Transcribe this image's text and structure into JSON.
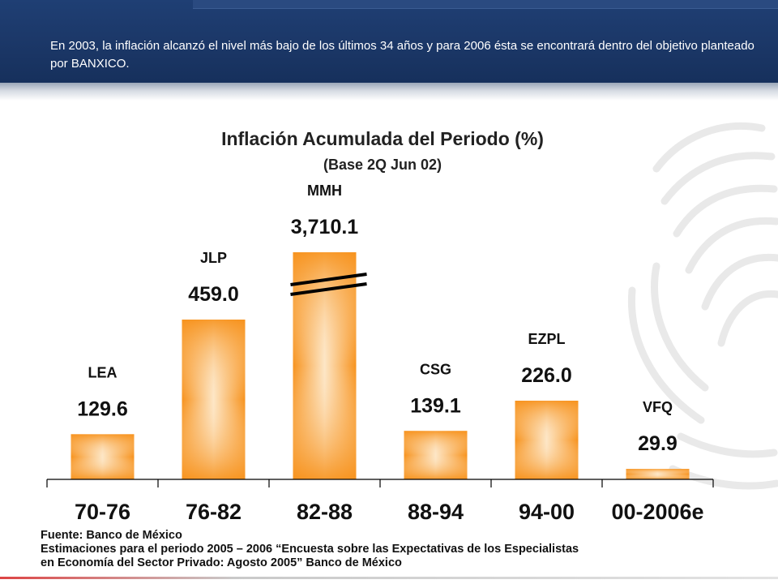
{
  "header": {
    "note": "En 2003, la inflación alcanzó el nivel más bajo de los últimos 34 años y para 2006 ésta se encontrará dentro del objetivo planteado por BANXICO."
  },
  "chart_data": {
    "type": "bar",
    "title": "Inflación Acumulada del Periodo (%)",
    "subtitle": "(Base 2Q Jun 02)",
    "categories": [
      "70-76",
      "76-82",
      "82-88",
      "88-94",
      "94-00",
      "00-2006e"
    ],
    "bar_labels": [
      "LEA",
      "JLP",
      "MMH",
      "CSG",
      "EZPL",
      "VFQ"
    ],
    "values": [
      129.6,
      459.0,
      3710.1,
      139.1,
      226.0,
      29.9
    ],
    "value_labels": [
      "129.6",
      "459.0",
      "3,710.1",
      "139.1",
      "226.0",
      "29.9"
    ],
    "broken_axis_bar": "82-88",
    "xlabel": "",
    "ylabel": "",
    "grid": false,
    "bar_color": "#f7931e"
  },
  "footer": {
    "source": "Fuente: Banco de México",
    "note_line1": "Estimaciones para el periodo 2005 – 2006 “Encuesta sobre las Expectativas de los Especialistas",
    "note_line2": "en Economía del Sector Privado: Agosto 2005” Banco de México"
  }
}
